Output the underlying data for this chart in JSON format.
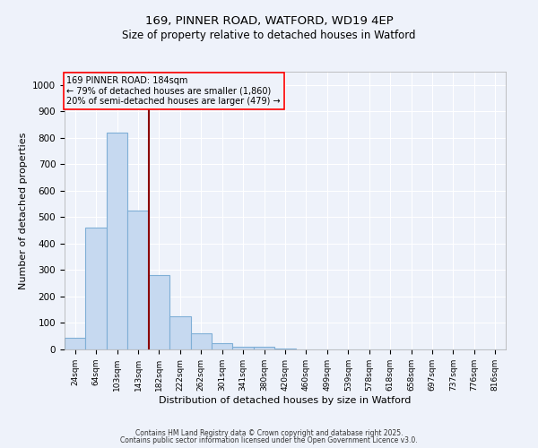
{
  "title1": "169, PINNER ROAD, WATFORD, WD19 4EP",
  "title2": "Size of property relative to detached houses in Watford",
  "xlabel": "Distribution of detached houses by size in Watford",
  "ylabel": "Number of detached properties",
  "categories": [
    "24sqm",
    "64sqm",
    "103sqm",
    "143sqm",
    "182sqm",
    "222sqm",
    "262sqm",
    "301sqm",
    "341sqm",
    "380sqm",
    "420sqm",
    "460sqm",
    "499sqm",
    "539sqm",
    "578sqm",
    "618sqm",
    "658sqm",
    "697sqm",
    "737sqm",
    "776sqm",
    "816sqm"
  ],
  "values": [
    45,
    460,
    820,
    525,
    280,
    125,
    60,
    25,
    10,
    10,
    5,
    0,
    0,
    0,
    0,
    0,
    0,
    0,
    0,
    0,
    0
  ],
  "bar_color": "#c6d9f0",
  "bar_edgecolor": "#7fafd6",
  "vline_x": 3.5,
  "vline_color": "#8b0000",
  "annotation_text": "169 PINNER ROAD: 184sqm\n← 79% of detached houses are smaller (1,860)\n20% of semi-detached houses are larger (479) →",
  "ylim": [
    0,
    1050
  ],
  "yticks": [
    0,
    100,
    200,
    300,
    400,
    500,
    600,
    700,
    800,
    900,
    1000
  ],
  "bg_color": "#eef2fa",
  "grid_color": "#ffffff",
  "footer1": "Contains HM Land Registry data © Crown copyright and database right 2025.",
  "footer2": "Contains public sector information licensed under the Open Government Licence v3.0."
}
